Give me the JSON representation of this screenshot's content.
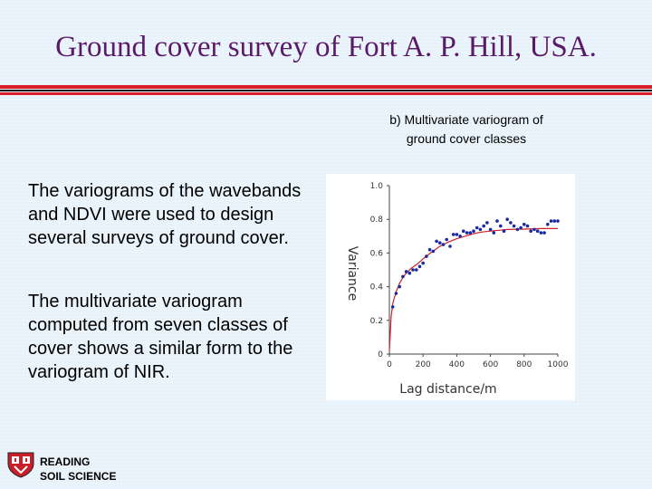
{
  "slide": {
    "title": "Ground cover survey of Fort A. P. Hill, USA.",
    "caption_line1": "b) Multivariate variogram of",
    "caption_line2": "ground cover classes",
    "paragraph1": "The variograms of the wavebands and NDVI were used to design several surveys of ground cover.",
    "paragraph2": "The multivariate variogram computed from seven classes of cover shows a similar form to the variogram of NIR.",
    "brand_line1": "READING",
    "brand_line2": "SOIL SCIENCE"
  },
  "colors": {
    "title": "#5a1a6a",
    "rule_red": "#d81e2a",
    "points": "#1a2aa0",
    "curve": "#d0202a"
  },
  "chart_data": {
    "type": "scatter",
    "xlabel": "Lag distance/m",
    "ylabel": "Variance",
    "xlim": [
      0,
      1000
    ],
    "ylim": [
      0,
      1.0
    ],
    "xticks": [
      "0",
      "200",
      "400",
      "600",
      "800",
      "1000"
    ],
    "yticks": [
      "0",
      "0.2",
      "0.4",
      "0.6",
      "0.8",
      "1.0"
    ],
    "grid": false,
    "series": [
      {
        "kind": "points",
        "x": [
          20,
          40,
          60,
          80,
          100,
          120,
          140,
          160,
          180,
          200,
          220,
          240,
          260,
          280,
          300,
          320,
          340,
          360,
          380,
          400,
          420,
          440,
          460,
          480,
          500,
          520,
          540,
          560,
          580,
          600,
          620,
          640,
          660,
          680,
          700,
          720,
          740,
          760,
          780,
          800,
          820,
          840,
          860,
          880,
          900,
          920,
          940,
          960,
          980,
          1000
        ],
        "y": [
          0.28,
          0.36,
          0.4,
          0.46,
          0.49,
          0.48,
          0.5,
          0.5,
          0.52,
          0.54,
          0.58,
          0.62,
          0.61,
          0.67,
          0.66,
          0.65,
          0.68,
          0.64,
          0.71,
          0.71,
          0.7,
          0.73,
          0.72,
          0.72,
          0.73,
          0.75,
          0.74,
          0.76,
          0.78,
          0.74,
          0.72,
          0.79,
          0.76,
          0.73,
          0.8,
          0.78,
          0.76,
          0.74,
          0.75,
          0.77,
          0.76,
          0.73,
          0.74,
          0.73,
          0.72,
          0.72,
          0.77,
          0.79,
          0.79,
          0.79
        ]
      },
      {
        "kind": "curve",
        "model": "fitted",
        "x": [
          0,
          10,
          20,
          40,
          60,
          80,
          100,
          130,
          160,
          200,
          250,
          300,
          350,
          400,
          450,
          500,
          550,
          600,
          650,
          700,
          800,
          900,
          1000
        ],
        "y": [
          0.02,
          0.22,
          0.3,
          0.37,
          0.42,
          0.455,
          0.48,
          0.51,
          0.53,
          0.565,
          0.605,
          0.64,
          0.665,
          0.685,
          0.7,
          0.715,
          0.725,
          0.73,
          0.735,
          0.74,
          0.742,
          0.745,
          0.745
        ]
      }
    ]
  }
}
